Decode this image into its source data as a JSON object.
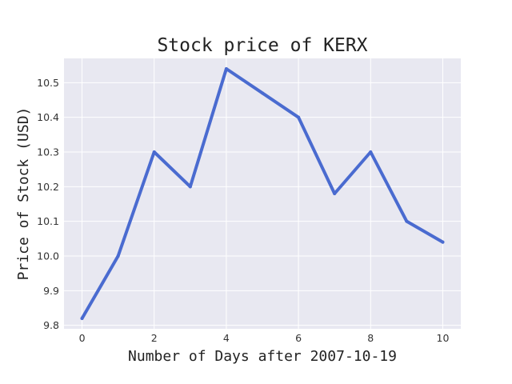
{
  "chart_data": {
    "type": "line",
    "title": "Stock price of KERX",
    "xlabel": "Number of Days after 2007-10-19",
    "ylabel": "Price of Stock (USD)",
    "x": [
      0,
      1,
      2,
      3,
      4,
      5,
      6,
      7,
      8,
      9,
      10
    ],
    "series": [
      {
        "values": [
          9.82,
          10.0,
          10.3,
          10.2,
          10.54,
          10.47,
          10.4,
          10.18,
          10.3,
          10.1,
          10.04
        ]
      }
    ],
    "xticks": [
      "0",
      "2",
      "4",
      "6",
      "8",
      "10"
    ],
    "yticks": [
      "9.8",
      "9.9",
      "10.0",
      "10.1",
      "10.2",
      "10.3",
      "10.4",
      "10.5"
    ],
    "xlim": [
      -0.5,
      10.5
    ],
    "ylim": [
      9.79,
      10.57
    ],
    "grid": true,
    "legend": "none",
    "line_color": "#4a6bd0",
    "background_color": "#e8e8f1"
  }
}
